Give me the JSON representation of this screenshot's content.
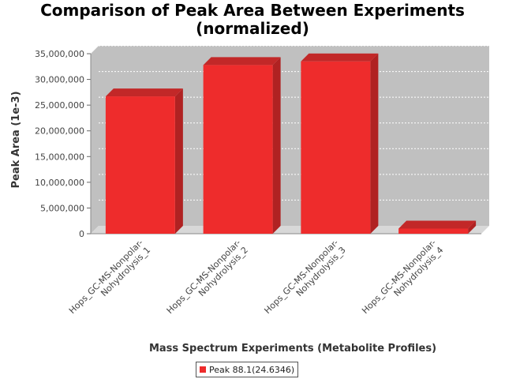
{
  "chart_title": {
    "line1": "Comparison of Peak Area Between Experiments",
    "line2": "(normalized)"
  },
  "chart_data": {
    "type": "bar",
    "title": "Comparison of Peak Area Between Experiments (normalized)",
    "xlabel": "Mass Spectrum Experiments (Metabolite Profiles)",
    "ylabel": "Peak Area (1e-3)",
    "ylim": [
      0,
      35000000
    ],
    "yticks": [
      "0",
      "5,000,000",
      "10,000,000",
      "15,000,000",
      "20,000,000",
      "25,000,000",
      "30,000,000",
      "35,000,000"
    ],
    "categories": [
      [
        "Hops_GC-MS-Nonpolar-",
        "Nohydrolysis_1"
      ],
      [
        "Hops_GC-MS-Nonpolar-",
        "Nohydrolysis_2"
      ],
      [
        "Hops_GC-MS-Nonpolar-",
        "Nohydrolysis_3"
      ],
      [
        "Hops_GC-MS-Nonpolar-",
        "Nohydrolysis_4"
      ]
    ],
    "series": [
      {
        "name": "Peak 88.1(24.6346)",
        "values": [
          26700000,
          32800000,
          33500000,
          1000000
        ]
      }
    ],
    "grid": true,
    "legend_position": "bottom",
    "colors": {
      "bar": "#ee2c2c",
      "plot_background": "#c0c0c0"
    }
  }
}
